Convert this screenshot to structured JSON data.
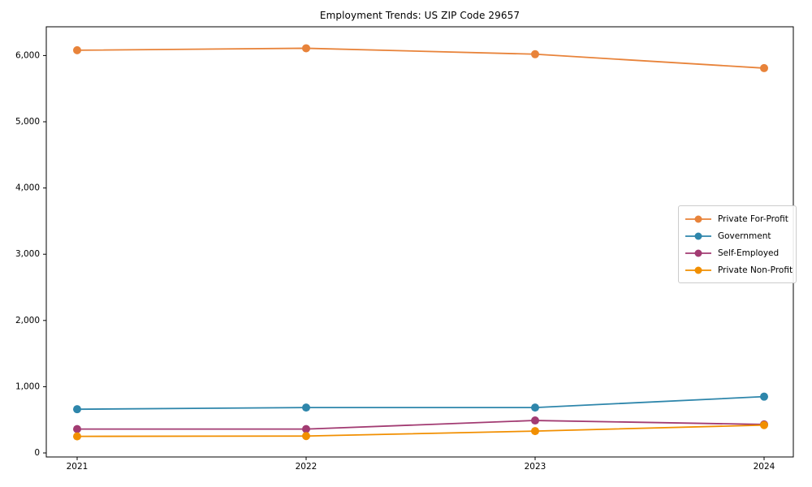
{
  "chart_data": {
    "type": "line",
    "title": "Employment Trends: US ZIP Code 29657",
    "categories": [
      "2021",
      "2022",
      "2023",
      "2024"
    ],
    "series": [
      {
        "name": "Private For-Profit",
        "color": "#E8833A",
        "values": [
          6080,
          6110,
          6020,
          5810
        ]
      },
      {
        "name": "Government",
        "color": "#2E86AB",
        "values": [
          660,
          685,
          685,
          850
        ]
      },
      {
        "name": "Self-Employed",
        "color": "#A23B72",
        "values": [
          360,
          360,
          490,
          430
        ]
      },
      {
        "name": "Private Non-Profit",
        "color": "#F18F01",
        "values": [
          250,
          255,
          330,
          420
        ]
      }
    ],
    "xlabel": "",
    "ylabel": "",
    "ylim": [
      -61,
      6434
    ],
    "y_ticks": [
      0,
      1000,
      2000,
      3000,
      4000,
      5000,
      6000
    ],
    "y_tick_labels": [
      "0",
      "1,000",
      "2,000",
      "3,000",
      "4,000",
      "5,000",
      "6,000"
    ],
    "legend_position": "center right",
    "grid": false,
    "marker": "circle",
    "axis_color": "#000000",
    "tick_label_color": "#000000"
  }
}
